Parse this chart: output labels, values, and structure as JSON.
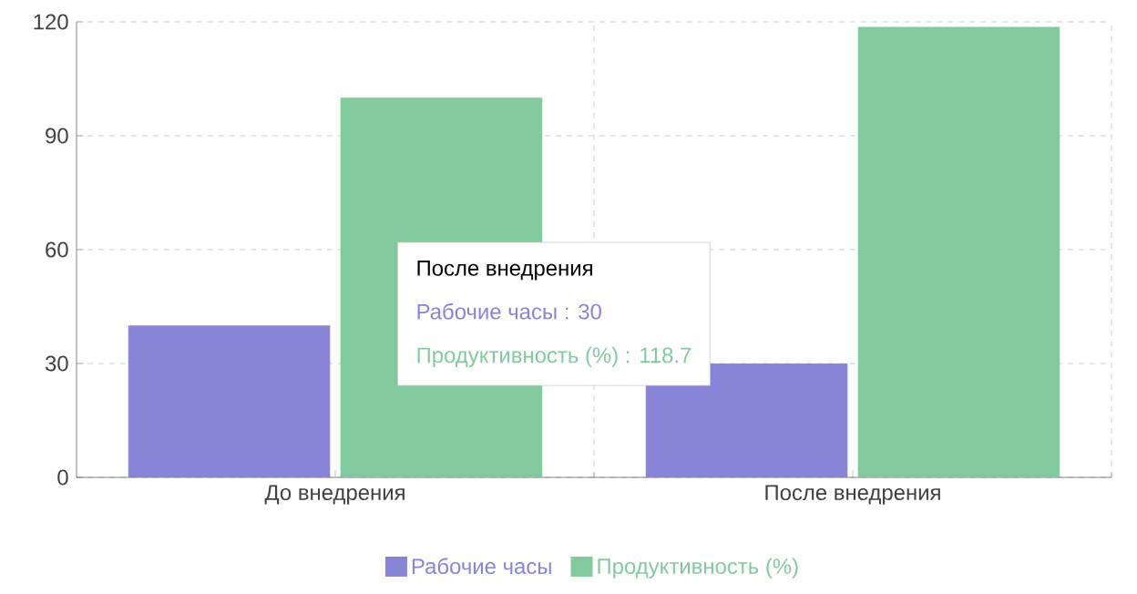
{
  "chart_data": {
    "type": "bar",
    "categories": [
      "До внедрения",
      "После внедрения"
    ],
    "series": [
      {
        "name": "Рабочие часы",
        "color": "#8884d8",
        "values": [
          40,
          30
        ]
      },
      {
        "name": "Продуктивность (%)",
        "color": "#82ca9d",
        "values": [
          100,
          118.7
        ]
      }
    ],
    "ylim": [
      0,
      120
    ],
    "yticks": [
      0,
      30,
      60,
      90,
      120
    ],
    "grid": true,
    "legend": "bottom",
    "annotations": [
      "После внедрения",
      "Рабочие часы : 30",
      "Продуктивность (%) : 118.7"
    ]
  }
}
